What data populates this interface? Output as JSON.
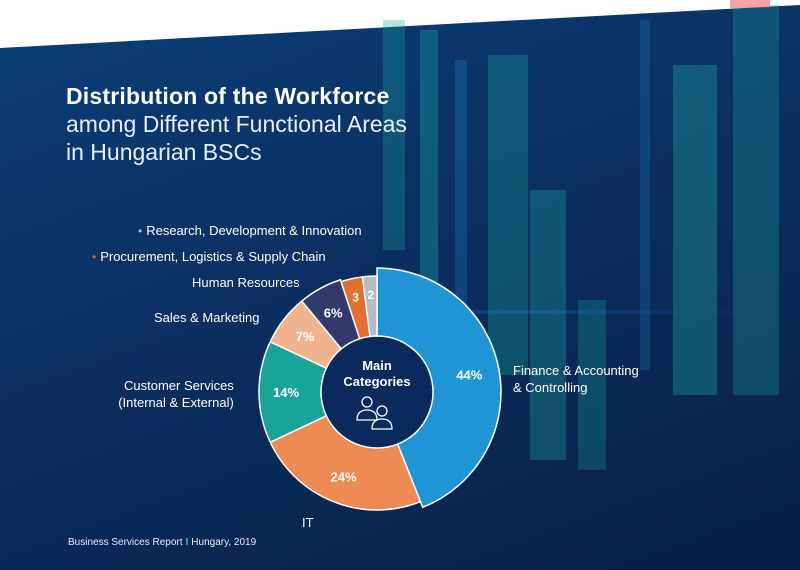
{
  "title": {
    "line1": "Distribution of the Workforce",
    "line2": "among Different Functional Areas",
    "line3": "in Hungarian BSCs"
  },
  "footer": {
    "left": "Business Services Report",
    "separator": "I",
    "right": "Hungary, 2019"
  },
  "colors": {
    "finance": "#1f95d6",
    "it": "#ee8a53",
    "customer": "#1aa397",
    "sales": "#f0b48f",
    "hr": "#313a6b",
    "procurement": "#e0702f",
    "rdi": "#b4bcc6",
    "center": "#0a2a5e"
  },
  "chart_data": {
    "type": "pie",
    "title": "Distribution of the Workforce among Different Functional Areas in Hungarian BSCs",
    "center_label": [
      "Main",
      "Categories"
    ],
    "center_icon": "people-icon",
    "series": [
      {
        "key": "finance",
        "name": "Finance & Accounting & Controlling",
        "value": 44,
        "label": "44%"
      },
      {
        "key": "it",
        "name": "IT",
        "value": 24,
        "label": "24%"
      },
      {
        "key": "customer",
        "name": "Customer Services (Internal & External)",
        "value": 14,
        "label": "14%"
      },
      {
        "key": "sales",
        "name": "Sales & Marketing",
        "value": 7,
        "label": "7%"
      },
      {
        "key": "hr",
        "name": "Human Resources",
        "value": 6,
        "label": "6%"
      },
      {
        "key": "procurement",
        "name": "Procurement, Logistics & Supply Chain",
        "value": 3,
        "label": "3"
      },
      {
        "key": "rdi",
        "name": "Research, Development & Innovation",
        "value": 2,
        "label": "2"
      }
    ],
    "category_labels": {
      "rdi": "Research, Development & Innovation",
      "procurement": "Procurement, Logistics & Supply Chain",
      "hr": "Human Resources",
      "sales": "Sales & Marketing",
      "customer_line1": "Customer Services",
      "customer_line2": "(Internal & External)",
      "finance_line1": "Finance & Accounting",
      "finance_line2": "& Controlling",
      "it": "IT"
    }
  }
}
